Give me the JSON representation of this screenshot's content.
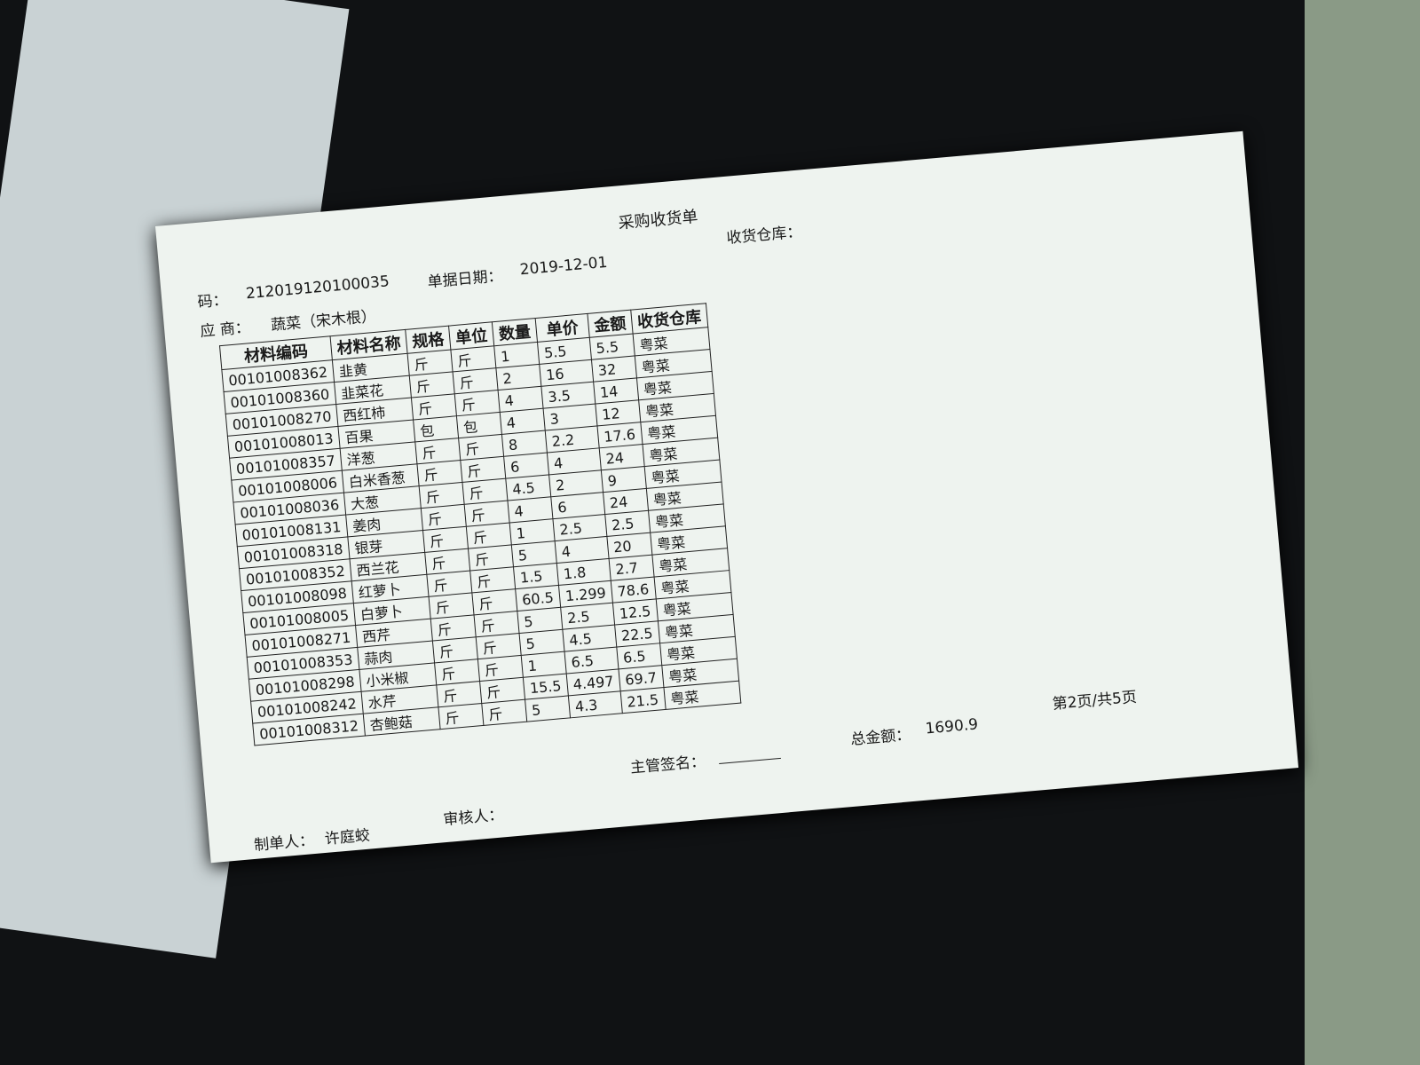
{
  "header": {
    "title": "采购收货单",
    "doc_no_label": "码：",
    "doc_no": "212019120100035",
    "date_label": "单据日期：",
    "date": "2019-12-01",
    "warehouse_label": "收货仓库：",
    "supplier_label": "应 商：",
    "supplier": "蔬菜（宋木根）"
  },
  "table": {
    "columns": [
      "材料编码",
      "材料名称",
      "规格",
      "单位",
      "数量",
      "单价",
      "金额",
      "收货仓库"
    ],
    "rows": [
      [
        "00101008362",
        "韭黄",
        "斤",
        "斤",
        1,
        5.5,
        5.5,
        "粤菜"
      ],
      [
        "00101008360",
        "韭菜花",
        "斤",
        "斤",
        2,
        16,
        32,
        "粤菜"
      ],
      [
        "00101008270",
        "西红柿",
        "斤",
        "斤",
        4,
        3.5,
        14,
        "粤菜"
      ],
      [
        "00101008013",
        "百果",
        "包",
        "包",
        4,
        3,
        12,
        "粤菜"
      ],
      [
        "00101008357",
        "洋葱",
        "斤",
        "斤",
        8,
        2.2,
        17.6,
        "粤菜"
      ],
      [
        "00101008006",
        "白米香葱",
        "斤",
        "斤",
        6,
        4,
        24,
        "粤菜"
      ],
      [
        "00101008036",
        "大葱",
        "斤",
        "斤",
        4.5,
        2,
        9,
        "粤菜"
      ],
      [
        "00101008131",
        "姜肉",
        "斤",
        "斤",
        4,
        6,
        24,
        "粤菜"
      ],
      [
        "00101008318",
        "银芽",
        "斤",
        "斤",
        1,
        2.5,
        2.5,
        "粤菜"
      ],
      [
        "00101008352",
        "西兰花",
        "斤",
        "斤",
        5,
        4,
        20,
        "粤菜"
      ],
      [
        "00101008098",
        "红萝卜",
        "斤",
        "斤",
        1.5,
        1.8,
        2.7,
        "粤菜"
      ],
      [
        "00101008005",
        "白萝卜",
        "斤",
        "斤",
        60.5,
        1.299,
        78.6,
        "粤菜"
      ],
      [
        "00101008271",
        "西芹",
        "斤",
        "斤",
        5,
        2.5,
        12.5,
        "粤菜"
      ],
      [
        "00101008353",
        "蒜肉",
        "斤",
        "斤",
        5,
        4.5,
        22.5,
        "粤菜"
      ],
      [
        "00101008298",
        "小米椒",
        "斤",
        "斤",
        1,
        6.5,
        6.5,
        "粤菜"
      ],
      [
        "00101008242",
        "水芹",
        "斤",
        "斤",
        15.5,
        4.497,
        69.7,
        "粤菜"
      ],
      [
        "00101008312",
        "杏鲍菇",
        "斤",
        "斤",
        5,
        4.3,
        21.5,
        "粤菜"
      ]
    ]
  },
  "footer": {
    "manager_label": "主管签名：",
    "total_label": "总金额：",
    "total": 1690.9,
    "page": "第2页/共5页",
    "maker_label": "制单人：",
    "maker": "许庭蛟",
    "reviewer_label": "审核人："
  }
}
